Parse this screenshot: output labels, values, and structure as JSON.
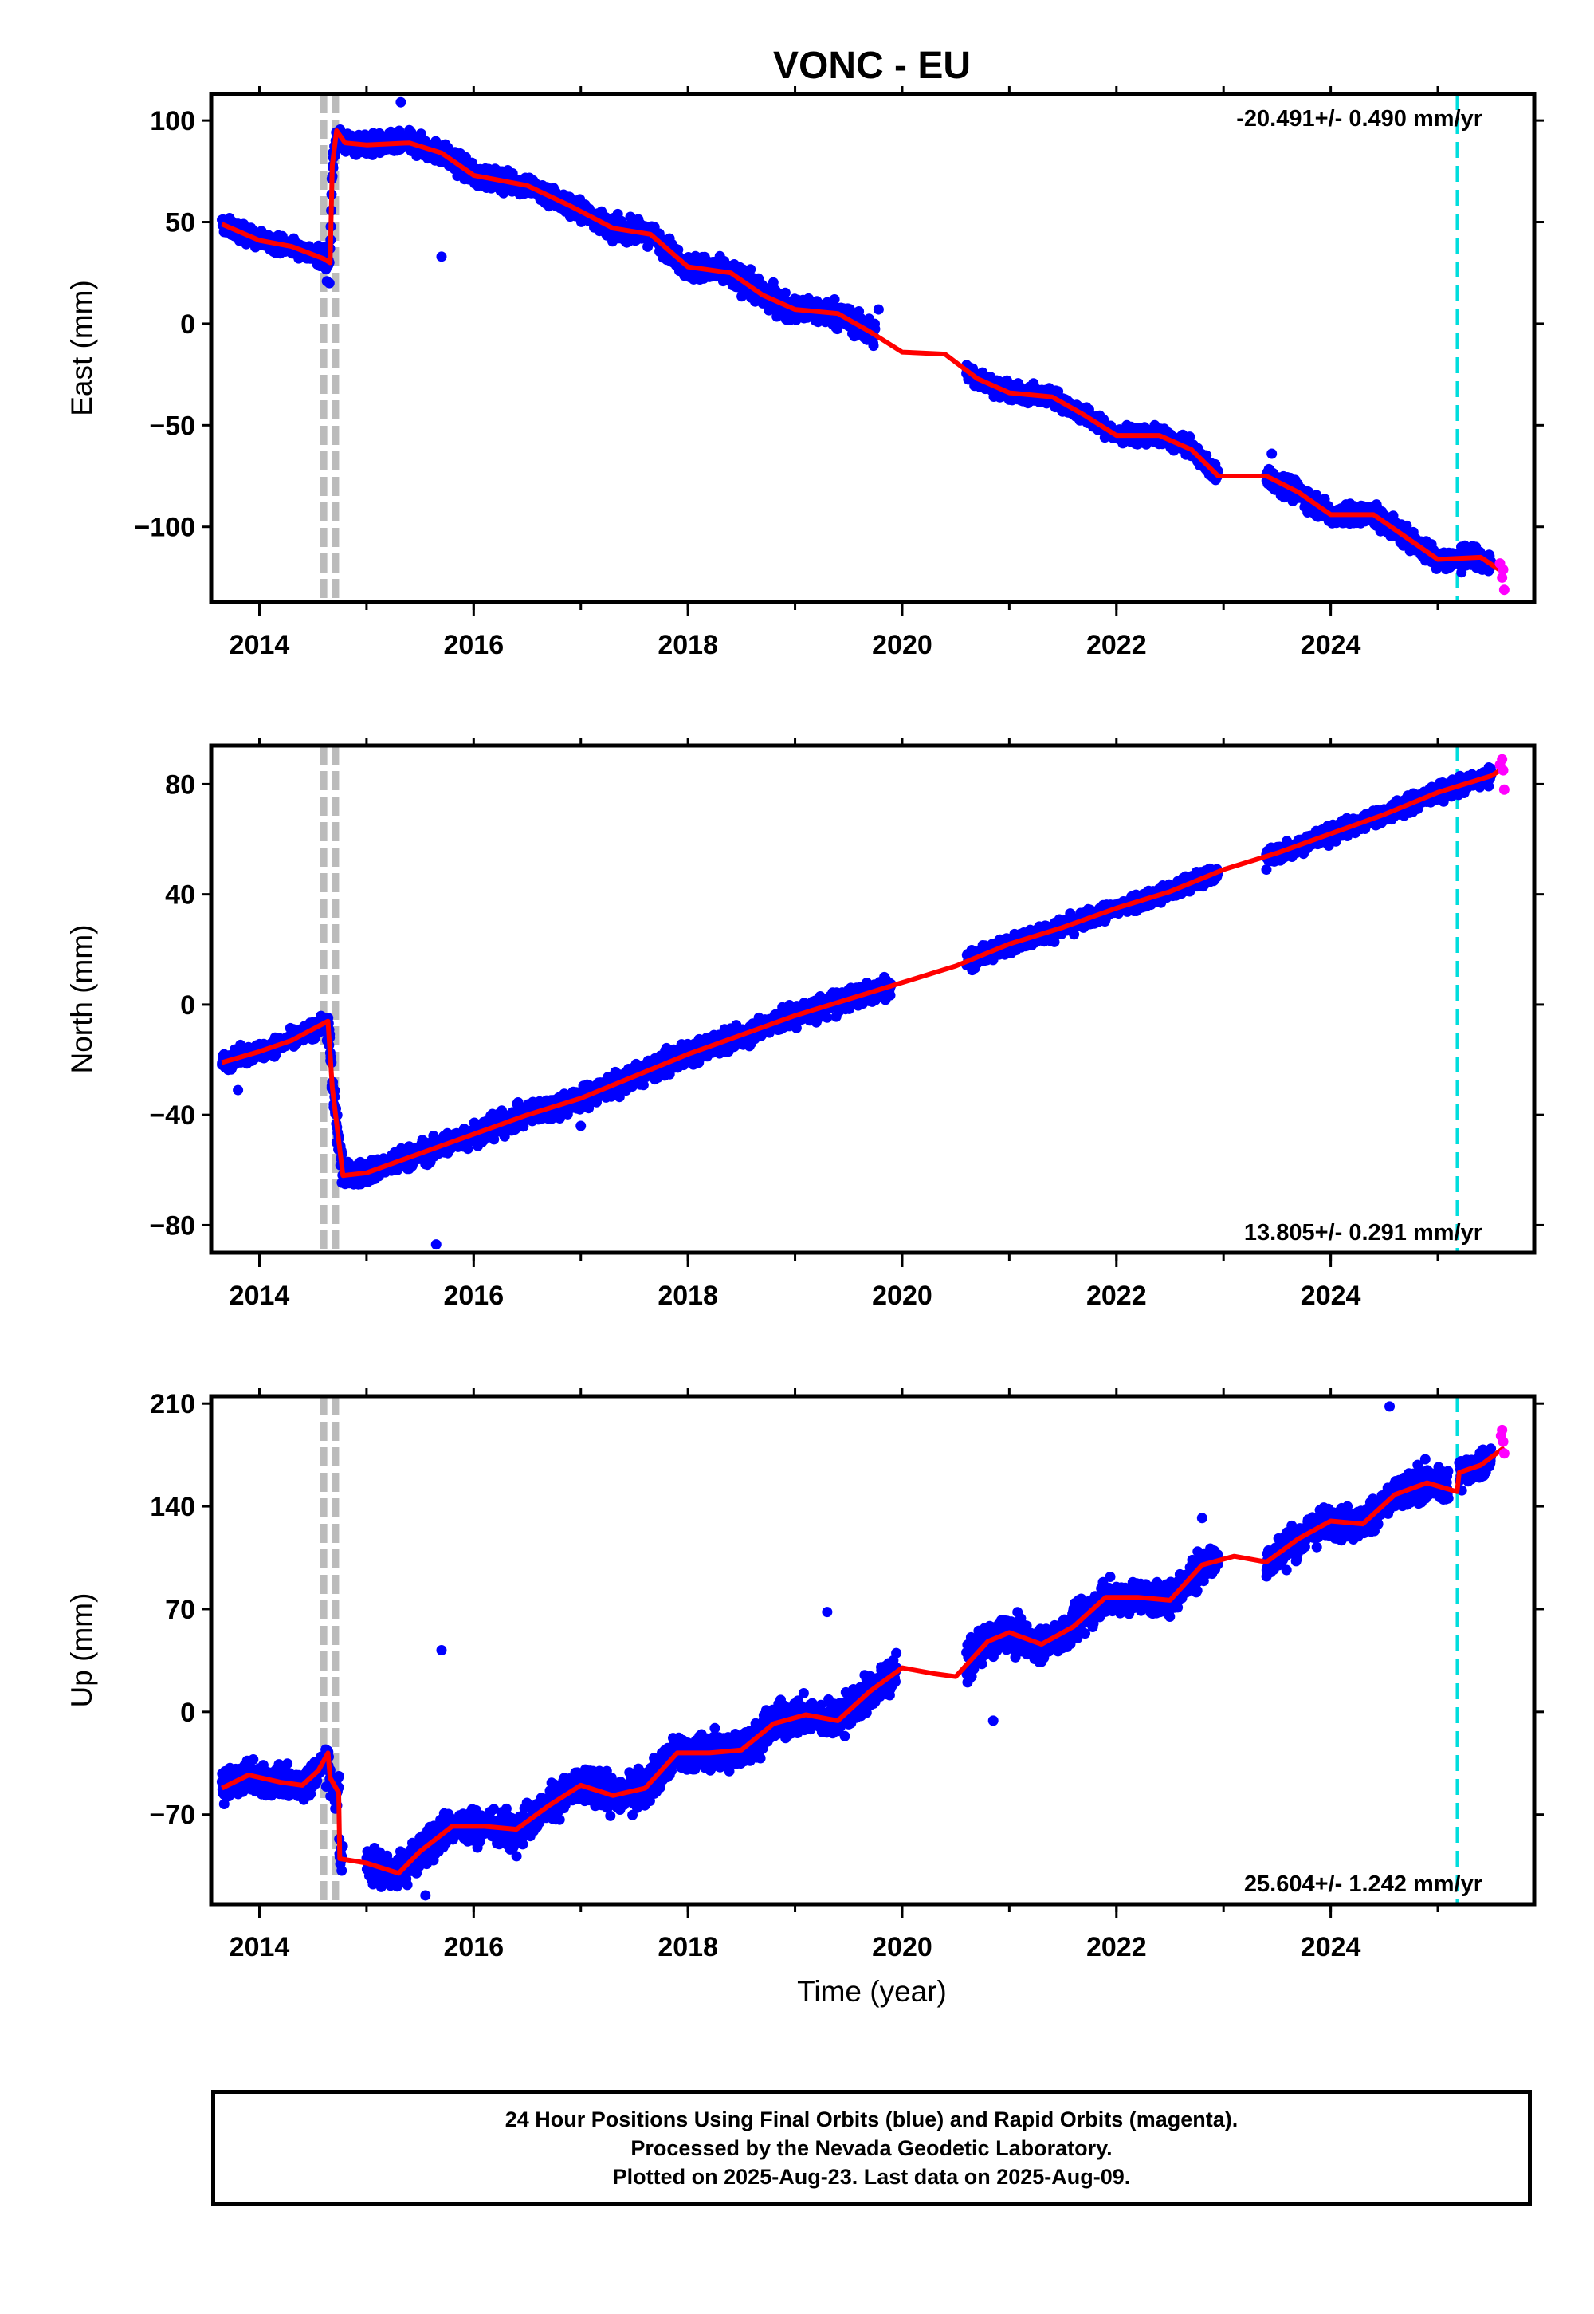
{
  "title": "VONC - EU",
  "xlabel": "Time (year)",
  "colors": {
    "final_orbits": "#0000ff",
    "rapid_orbits": "#ff00ff",
    "model": "#ff0000",
    "equipment_change": "#bbbbbb",
    "event": "#00dddd"
  },
  "caption": {
    "line1": "24 Hour Positions Using Final Orbits (blue) and Rapid Orbits (magenta).",
    "line2": "Processed by the Nevada Geodetic Laboratory.",
    "line3": "Plotted on 2025-Aug-23. Last data on 2025-Aug-09."
  },
  "chart_data": [
    {
      "type": "scatter",
      "panel": "east",
      "ylabel": "East (mm)",
      "xlim": [
        2013.55,
        2025.9
      ],
      "ylim": [
        -137,
        113
      ],
      "xticks": [
        2014,
        2016,
        2018,
        2020,
        2022,
        2024
      ],
      "yticks": [
        -100,
        -50,
        0,
        50,
        100
      ],
      "rate_text": "-20.491+/- 0.490 mm/yr",
      "rate_position": "top-right",
      "vlines": [
        {
          "x": 2014.6,
          "style": "gray-dashed"
        },
        {
          "x": 2014.71,
          "style": "gray-dashed"
        },
        {
          "x": 2025.18,
          "style": "cyan-dashed"
        }
      ],
      "model_trend": [
        [
          2013.65,
          49
        ],
        [
          2014.0,
          41
        ],
        [
          2014.3,
          38
        ],
        [
          2014.6,
          32
        ],
        [
          2014.66,
          30
        ],
        [
          2014.68,
          78
        ],
        [
          2014.72,
          95
        ],
        [
          2014.8,
          89
        ],
        [
          2015.0,
          88
        ],
        [
          2015.4,
          89
        ],
        [
          2015.7,
          84
        ],
        [
          2016.0,
          73
        ],
        [
          2016.5,
          68
        ],
        [
          2016.9,
          58
        ],
        [
          2017.3,
          47
        ],
        [
          2017.65,
          44
        ],
        [
          2018.0,
          28
        ],
        [
          2018.4,
          25
        ],
        [
          2018.7,
          14
        ],
        [
          2019.0,
          7
        ],
        [
          2019.4,
          5
        ],
        [
          2019.7,
          -4
        ],
        [
          2020.0,
          -14
        ],
        [
          2020.4,
          -15
        ],
        [
          2020.7,
          -27
        ],
        [
          2021.0,
          -34
        ],
        [
          2021.4,
          -36
        ],
        [
          2021.7,
          -45
        ],
        [
          2022.0,
          -55
        ],
        [
          2022.4,
          -55
        ],
        [
          2022.7,
          -62
        ],
        [
          2022.95,
          -75
        ],
        [
          2023.4,
          -75
        ],
        [
          2023.7,
          -83
        ],
        [
          2024.0,
          -94
        ],
        [
          2024.4,
          -94
        ],
        [
          2024.7,
          -105
        ],
        [
          2025.0,
          -116
        ],
        [
          2025.4,
          -115
        ],
        [
          2025.6,
          -122
        ]
      ],
      "final_segments": [
        {
          "x0": 2013.65,
          "x1": 2014.6,
          "spread": 4
        },
        {
          "x0": 2014.62,
          "x1": 2014.72,
          "spread": 8
        },
        {
          "x0": 2014.75,
          "x1": 2018.05,
          "spread": 5
        },
        {
          "x0": 2018.0,
          "x1": 2019.75,
          "spread": 6
        },
        {
          "x0": 2020.6,
          "x1": 2022.95,
          "spread": 4
        },
        {
          "x0": 2023.4,
          "x1": 2025.5,
          "spread": 5
        }
      ],
      "rapid_points": [
        [
          2025.58,
          -118
        ],
        [
          2025.6,
          -125
        ],
        [
          2025.62,
          -131
        ],
        [
          2025.61,
          -121
        ]
      ],
      "outliers": [
        [
          2015.7,
          33
        ],
        [
          2015.32,
          109
        ],
        [
          2019.78,
          7
        ],
        [
          2023.45,
          -64
        ],
        [
          2020.75,
          -24
        ]
      ]
    },
    {
      "type": "scatter",
      "panel": "north",
      "ylabel": "North (mm)",
      "xlim": [
        2013.55,
        2025.9
      ],
      "ylim": [
        -90,
        94
      ],
      "xticks": [
        2014,
        2016,
        2018,
        2020,
        2022,
        2024
      ],
      "yticks": [
        -80,
        -40,
        0,
        40,
        80
      ],
      "rate_text": "13.805+/- 0.291 mm/yr",
      "rate_position": "bottom-right",
      "vlines": [
        {
          "x": 2014.6,
          "style": "gray-dashed"
        },
        {
          "x": 2014.71,
          "style": "gray-dashed"
        },
        {
          "x": 2025.18,
          "style": "cyan-dashed"
        }
      ],
      "model_trend": [
        [
          2013.65,
          -21
        ],
        [
          2014.0,
          -17
        ],
        [
          2014.3,
          -13
        ],
        [
          2014.64,
          -6
        ],
        [
          2014.68,
          -30
        ],
        [
          2014.78,
          -62
        ],
        [
          2015.0,
          -61
        ],
        [
          2015.5,
          -54
        ],
        [
          2016.0,
          -47
        ],
        [
          2016.5,
          -40
        ],
        [
          2017.0,
          -34
        ],
        [
          2017.5,
          -26
        ],
        [
          2018.0,
          -18
        ],
        [
          2018.5,
          -11
        ],
        [
          2019.0,
          -4
        ],
        [
          2019.5,
          2
        ],
        [
          2020.0,
          8
        ],
        [
          2020.5,
          14
        ],
        [
          2021.0,
          22
        ],
        [
          2021.5,
          28
        ],
        [
          2022.0,
          35
        ],
        [
          2022.5,
          41
        ],
        [
          2023.0,
          49
        ],
        [
          2023.5,
          55
        ],
        [
          2024.0,
          62
        ],
        [
          2024.5,
          69
        ],
        [
          2025.0,
          77
        ],
        [
          2025.5,
          83
        ],
        [
          2025.62,
          86
        ]
      ],
      "final_segments": [
        {
          "x0": 2013.65,
          "x1": 2014.6,
          "spread": 3
        },
        {
          "x0": 2014.62,
          "x1": 2014.78,
          "spread": 7
        },
        {
          "x0": 2014.8,
          "x1": 2019.9,
          "spread": 4
        },
        {
          "x0": 2020.6,
          "x1": 2022.95,
          "spread": 3
        },
        {
          "x0": 2023.4,
          "x1": 2025.5,
          "spread": 3
        }
      ],
      "rapid_points": [
        [
          2025.6,
          89
        ],
        [
          2025.61,
          85
        ],
        [
          2025.62,
          78
        ],
        [
          2025.58,
          87
        ]
      ],
      "outliers": [
        [
          2015.65,
          -87
        ],
        [
          2013.8,
          -31
        ],
        [
          2017.0,
          -44
        ],
        [
          2023.4,
          49
        ]
      ]
    },
    {
      "type": "scatter",
      "panel": "up",
      "ylabel": "Up (mm)",
      "xlim": [
        2013.55,
        2025.9
      ],
      "ylim": [
        -131,
        215
      ],
      "xticks": [
        2014,
        2016,
        2018,
        2020,
        2022,
        2024
      ],
      "yticks": [
        -70,
        0,
        70,
        140,
        210
      ],
      "rate_text": "25.604+/- 1.242 mm/yr",
      "rate_position": "bottom-right",
      "vlines": [
        {
          "x": 2014.6,
          "style": "gray-dashed"
        },
        {
          "x": 2014.71,
          "style": "gray-dashed"
        },
        {
          "x": 2025.18,
          "style": "cyan-dashed"
        }
      ],
      "model_trend": [
        [
          2013.65,
          -52
        ],
        [
          2013.9,
          -43
        ],
        [
          2014.2,
          -48
        ],
        [
          2014.4,
          -50
        ],
        [
          2014.55,
          -40
        ],
        [
          2014.64,
          -28
        ],
        [
          2014.66,
          -45
        ],
        [
          2014.74,
          -55
        ],
        [
          2014.75,
          -100
        ],
        [
          2015.0,
          -103
        ],
        [
          2015.3,
          -110
        ],
        [
          2015.5,
          -95
        ],
        [
          2015.8,
          -78
        ],
        [
          2016.1,
          -78
        ],
        [
          2016.4,
          -80
        ],
        [
          2016.7,
          -64
        ],
        [
          2017.0,
          -50
        ],
        [
          2017.3,
          -57
        ],
        [
          2017.6,
          -52
        ],
        [
          2017.9,
          -28
        ],
        [
          2018.2,
          -28
        ],
        [
          2018.5,
          -26
        ],
        [
          2018.8,
          -8
        ],
        [
          2019.1,
          -2
        ],
        [
          2019.4,
          -6
        ],
        [
          2019.7,
          14
        ],
        [
          2020.0,
          30
        ],
        [
          2020.3,
          26
        ],
        [
          2020.5,
          24
        ],
        [
          2020.8,
          48
        ],
        [
          2021.0,
          54
        ],
        [
          2021.3,
          46
        ],
        [
          2021.6,
          58
        ],
        [
          2021.9,
          78
        ],
        [
          2022.2,
          78
        ],
        [
          2022.5,
          76
        ],
        [
          2022.8,
          100
        ],
        [
          2023.1,
          106
        ],
        [
          2023.4,
          102
        ],
        [
          2023.7,
          118
        ],
        [
          2024.0,
          130
        ],
        [
          2024.3,
          128
        ],
        [
          2024.6,
          148
        ],
        [
          2024.9,
          156
        ],
        [
          2025.18,
          150
        ],
        [
          2025.2,
          163
        ],
        [
          2025.4,
          168
        ],
        [
          2025.62,
          180
        ]
      ],
      "final_segments": [
        {
          "x0": 2013.65,
          "x1": 2014.6,
          "spread": 10
        },
        {
          "x0": 2014.62,
          "x1": 2014.78,
          "spread": 15
        },
        {
          "x0": 2015.0,
          "x1": 2019.95,
          "spread": 12
        },
        {
          "x0": 2020.6,
          "x1": 2022.95,
          "spread": 11
        },
        {
          "x0": 2023.4,
          "x1": 2025.1,
          "spread": 11
        },
        {
          "x0": 2025.2,
          "x1": 2025.5,
          "spread": 8
        }
      ],
      "rapid_points": [
        [
          2025.6,
          192
        ],
        [
          2025.61,
          184
        ],
        [
          2025.62,
          176
        ],
        [
          2025.59,
          188
        ]
      ],
      "outliers": [
        [
          2015.7,
          42
        ],
        [
          2024.55,
          208
        ],
        [
          2019.3,
          68
        ],
        [
          2015.55,
          -125
        ],
        [
          2022.8,
          132
        ],
        [
          2020.85,
          -6
        ]
      ]
    }
  ]
}
